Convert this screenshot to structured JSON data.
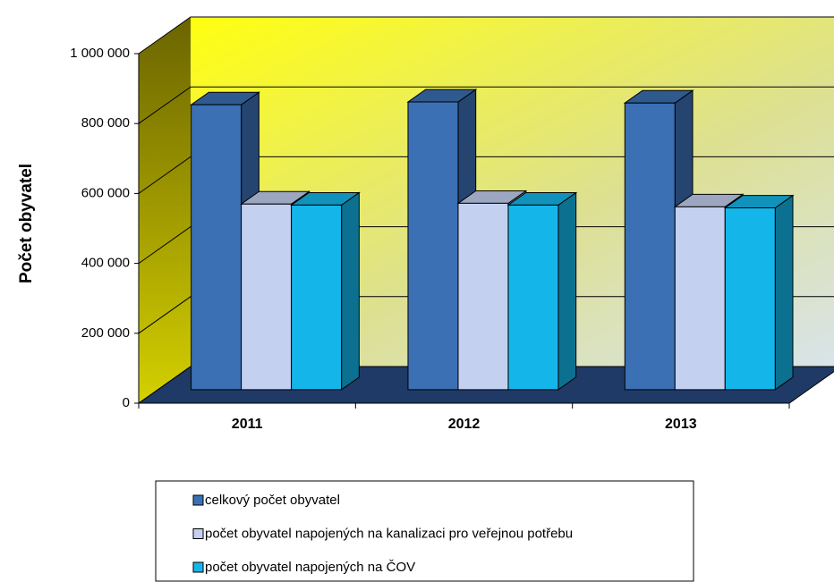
{
  "chart_data": {
    "type": "bar3d",
    "y_label": "Počet obyvatel",
    "categories": [
      "2011",
      "2012",
      "2013"
    ],
    "series": [
      {
        "name": "celkový počet obyvatel",
        "color": "#3b70b4",
        "values": [
          815000,
          823000,
          820000
        ]
      },
      {
        "name": "počet obyvatel napojených na kanalizaci pro veřejnou potřebu",
        "color": "#c3d0f0",
        "values": [
          531000,
          533000,
          523000
        ]
      },
      {
        "name": "počet obyvatel napojených na ČOV",
        "color": "#14b6ea",
        "values": [
          528000,
          528000,
          520000
        ]
      }
    ],
    "ylim": [
      0,
      1000000
    ],
    "yticks": [
      0,
      {
        "value": 200000,
        "label": "200 000"
      },
      {
        "value": 400000,
        "label": "400 000"
      },
      {
        "value": 600000,
        "label": "600 000"
      },
      {
        "value": 800000,
        "label": "800 000"
      },
      {
        "value": 1000000,
        "label": "1 000 000"
      }
    ],
    "grid": true,
    "legend": "bottom"
  }
}
